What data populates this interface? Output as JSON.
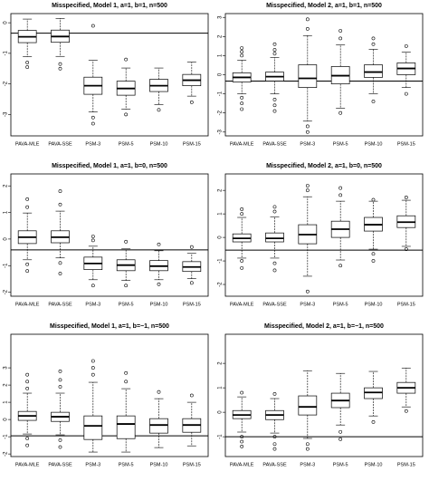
{
  "chart_data": [
    {
      "type": "box",
      "title": "Misspecified, Model 1, a=1, b=1, n=500",
      "categories": [
        "PAVA-MLE",
        "PAVA-SSE",
        "PSM-3",
        "PSM-5",
        "PSM-10",
        "PSM-15"
      ],
      "ylim": [
        -3.7,
        0.3
      ],
      "yticks": [
        0,
        -1,
        -2,
        -3
      ],
      "hline": -0.34,
      "boxes": [
        {
          "whislo": -1.11,
          "q1": -0.65,
          "med": -0.46,
          "q3": -0.25,
          "whishi": 0.12,
          "outliers": [
            -1.3,
            -1.45
          ]
        },
        {
          "whislo": -1.1,
          "q1": -0.64,
          "med": -0.45,
          "q3": -0.24,
          "whishi": 0.14,
          "outliers": [
            -1.35,
            -1.5
          ]
        },
        {
          "whislo": -2.92,
          "q1": -2.34,
          "med": -2.06,
          "q3": -1.78,
          "whishi": -1.23,
          "outliers": [
            -0.1,
            -3.1,
            -3.3
          ]
        },
        {
          "whislo": -2.83,
          "q1": -2.37,
          "med": -2.15,
          "q3": -1.91,
          "whishi": -1.48,
          "outliers": [
            -1.2,
            -3.0
          ]
        },
        {
          "whislo": -2.68,
          "q1": -2.25,
          "med": -2.06,
          "q3": -1.85,
          "whishi": -1.48,
          "outliers": [
            -2.85
          ]
        },
        {
          "whislo": -2.4,
          "q1": -2.06,
          "med": -1.88,
          "q3": -1.69,
          "whishi": -1.29,
          "outliers": [
            -2.6
          ]
        }
      ]
    },
    {
      "type": "box",
      "title": "Misspecified, Model 2, a=1, b=1, n=500",
      "categories": [
        "PAVA-MLE",
        "PAVA-SSE",
        "PSM-3",
        "PSM-5",
        "PSM-10",
        "PSM-15"
      ],
      "ylim": [
        -3.2,
        3.2
      ],
      "yticks": [
        3,
        2,
        1,
        0,
        -1,
        -2,
        -3
      ],
      "hline": -0.33,
      "boxes": [
        {
          "whislo": -1.0,
          "q1": -0.38,
          "med": -0.14,
          "q3": 0.1,
          "whishi": 0.76,
          "outliers": [
            1.0,
            1.2,
            1.4,
            -1.2,
            -1.5,
            -1.8
          ]
        },
        {
          "whislo": -1.0,
          "q1": -0.33,
          "med": -0.1,
          "q3": 0.14,
          "whishi": 0.9,
          "outliers": [
            1.1,
            1.3,
            1.6,
            -1.3,
            -1.6,
            -1.9
          ]
        },
        {
          "whislo": -2.43,
          "q1": -0.67,
          "med": -0.19,
          "q3": 0.52,
          "whishi": 2.05,
          "outliers": [
            2.4,
            2.9,
            -2.7,
            -3.0
          ]
        },
        {
          "whislo": -1.76,
          "q1": -0.48,
          "med": -0.05,
          "q3": 0.43,
          "whishi": 1.57,
          "outliers": [
            1.9,
            2.3,
            -2.0
          ]
        },
        {
          "whislo": -1.0,
          "q1": -0.14,
          "med": 0.14,
          "q3": 0.52,
          "whishi": 1.33,
          "outliers": [
            1.6,
            1.9,
            -1.4
          ]
        },
        {
          "whislo": -0.67,
          "q1": 0.0,
          "med": 0.33,
          "q3": 0.62,
          "whishi": 1.19,
          "outliers": [
            1.5,
            -1.0
          ]
        }
      ]
    },
    {
      "type": "box",
      "title": "Misspecified, Model 1, a=1, b=0, n=500",
      "categories": [
        "PAVA-MLE",
        "PAVA-SSE",
        "PSM-3",
        "PSM-5",
        "PSM-10",
        "PSM-15"
      ],
      "ylim": [
        -2.15,
        2.45
      ],
      "yticks": [
        2,
        1,
        0,
        -1,
        -2
      ],
      "hline": -0.41,
      "boxes": [
        {
          "whislo": -0.78,
          "q1": -0.17,
          "med": 0.07,
          "q3": 0.31,
          "whishi": 0.98,
          "outliers": [
            1.2,
            1.5,
            -0.95,
            -1.2
          ]
        },
        {
          "whislo": -0.71,
          "q1": -0.14,
          "med": 0.07,
          "q3": 0.31,
          "whishi": 1.05,
          "outliers": [
            1.3,
            1.8,
            -0.9,
            -1.3
          ]
        },
        {
          "whislo": -1.53,
          "q1": -1.15,
          "med": -0.92,
          "q3": -0.68,
          "whishi": -0.27,
          "outliers": [
            0.1,
            -0.05,
            -1.75
          ]
        },
        {
          "whislo": -1.56,
          "q1": -1.19,
          "med": -0.98,
          "q3": -0.78,
          "whishi": -0.37,
          "outliers": [
            -0.1,
            -1.75
          ]
        },
        {
          "whislo": -1.53,
          "q1": -1.19,
          "med": -1.02,
          "q3": -0.81,
          "whishi": -0.44,
          "outliers": [
            -0.2,
            -1.7
          ]
        },
        {
          "whislo": -1.49,
          "q1": -1.22,
          "med": -1.05,
          "q3": -0.85,
          "whishi": -0.54,
          "outliers": [
            -0.3,
            -1.65
          ]
        }
      ]
    },
    {
      "type": "box",
      "title": "Misspecified, Model 2, a=1, b=0, n=500",
      "categories": [
        "PAVA-MLE",
        "PAVA-SSE",
        "PSM-3",
        "PSM-5",
        "PSM-10",
        "PSM-15"
      ],
      "ylim": [
        -2.5,
        2.7
      ],
      "yticks": [
        2,
        1,
        0,
        -1,
        -2
      ],
      "hline": -0.54,
      "boxes": [
        {
          "whislo": -0.88,
          "q1": -0.19,
          "med": -0.04,
          "q3": 0.15,
          "whishi": 0.85,
          "outliers": [
            1.0,
            1.2,
            -1.0,
            -1.3
          ]
        },
        {
          "whislo": -0.88,
          "q1": -0.19,
          "med": -0.04,
          "q3": 0.19,
          "whishi": 0.88,
          "outliers": [
            1.1,
            1.3,
            -1.1,
            -1.4
          ]
        },
        {
          "whislo": -1.65,
          "q1": -0.27,
          "med": 0.12,
          "q3": 0.54,
          "whishi": 1.73,
          "outliers": [
            2.0,
            2.2,
            -2.3
          ]
        },
        {
          "whislo": -0.96,
          "q1": 0.0,
          "med": 0.35,
          "q3": 0.69,
          "whishi": 1.54,
          "outliers": [
            1.8,
            2.1,
            -1.2
          ]
        },
        {
          "whislo": -0.5,
          "q1": 0.27,
          "med": 0.54,
          "q3": 0.85,
          "whishi": 1.54,
          "outliers": [
            1.6,
            -0.7,
            -1.0
          ]
        },
        {
          "whislo": -0.38,
          "q1": 0.42,
          "med": 0.65,
          "q3": 0.92,
          "whishi": 1.58,
          "outliers": [
            1.7,
            -0.5
          ]
        }
      ]
    },
    {
      "type": "box",
      "title": "Misspecified, Model 1, a=1, b=−1, n=500",
      "categories": [
        "PAVA-MLE",
        "PAVA-SSE",
        "PSM-3",
        "PSM-5",
        "PSM-10",
        "PSM-15"
      ],
      "ylim": [
        -2.15,
        4.95
      ],
      "yticks": [
        3,
        2,
        1,
        0,
        -1,
        -2
      ],
      "hline": -0.95,
      "boxes": [
        {
          "whislo": -0.84,
          "q1": -0.05,
          "med": 0.21,
          "q3": 0.47,
          "whishi": 1.53,
          "outliers": [
            1.8,
            2.2,
            2.6,
            -1.1,
            -1.5
          ]
        },
        {
          "whislo": -0.89,
          "q1": -0.11,
          "med": 0.16,
          "q3": 0.42,
          "whishi": 1.53,
          "outliers": [
            1.9,
            2.3,
            2.8,
            -1.2,
            -1.6
          ]
        },
        {
          "whislo": -1.89,
          "q1": -1.16,
          "med": -0.37,
          "q3": 0.21,
          "whishi": 2.16,
          "outliers": [
            2.6,
            3.0,
            3.4
          ]
        },
        {
          "whislo": -1.89,
          "q1": -1.11,
          "med": -0.26,
          "q3": 0.21,
          "whishi": 1.79,
          "outliers": [
            2.2,
            2.7
          ]
        },
        {
          "whislo": -1.63,
          "q1": -0.79,
          "med": -0.32,
          "q3": 0.05,
          "whishi": 1.21,
          "outliers": [
            1.6
          ]
        },
        {
          "whislo": -1.53,
          "q1": -0.74,
          "med": -0.32,
          "q3": 0.05,
          "whishi": 1.0,
          "outliers": [
            1.4
          ]
        }
      ]
    },
    {
      "type": "box",
      "title": "Misspecified, Model 2, a=1, b=−1, n=500",
      "categories": [
        "PAVA-MLE",
        "PAVA-SSE",
        "PSM-3",
        "PSM-5",
        "PSM-10",
        "PSM-15"
      ],
      "ylim": [
        -1.81,
        3.19
      ],
      "yticks": [
        2,
        1,
        0,
        -1
      ],
      "hline": -1.0,
      "boxes": [
        {
          "whislo": -0.81,
          "q1": -0.26,
          "med": -0.11,
          "q3": 0.07,
          "whishi": 0.63,
          "outliers": [
            0.8,
            -1.0,
            -1.2,
            -1.4
          ]
        },
        {
          "whislo": -0.85,
          "q1": -0.3,
          "med": -0.11,
          "q3": 0.07,
          "whishi": 0.56,
          "outliers": [
            0.75,
            -1.0,
            -1.3,
            -1.5
          ]
        },
        {
          "whislo": -1.07,
          "q1": -0.11,
          "med": 0.22,
          "q3": 0.67,
          "whishi": 1.7,
          "outliers": [
            -1.3,
            -1.5
          ]
        },
        {
          "whislo": -0.52,
          "q1": 0.19,
          "med": 0.48,
          "q3": 0.78,
          "whishi": 1.59,
          "outliers": [
            -0.8,
            -1.1
          ]
        },
        {
          "whislo": -0.15,
          "q1": 0.56,
          "med": 0.81,
          "q3": 1.0,
          "whishi": 1.67,
          "outliers": [
            -0.4
          ]
        },
        {
          "whislo": 0.22,
          "q1": 0.78,
          "med": 1.0,
          "q3": 1.22,
          "whishi": 1.81,
          "outliers": [
            0.05
          ]
        }
      ]
    }
  ]
}
